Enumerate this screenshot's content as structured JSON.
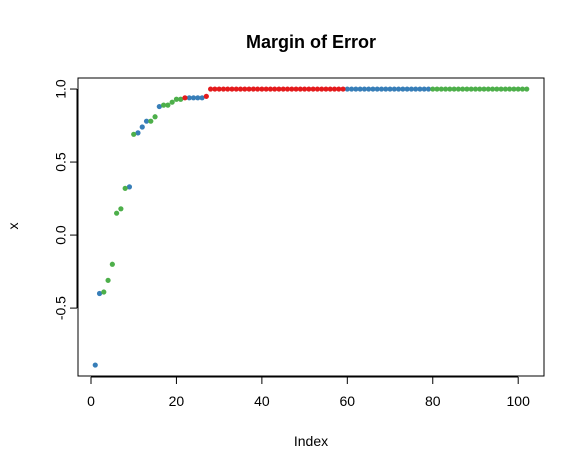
{
  "chart_data": {
    "type": "scatter",
    "title": "Margin of Error",
    "x_label": "Index",
    "y_label": "x",
    "xlim": [
      -3.04,
      106.04
    ],
    "ylim": [
      -0.965,
      1.0756
    ],
    "xticks": [
      0,
      20,
      40,
      60,
      80,
      100
    ],
    "yticks": [
      -0.5,
      {
        "value": 0,
        "label": "0.0"
      },
      0.5,
      {
        "value": 1,
        "label": "1.0"
      }
    ],
    "series": [
      {
        "color": "#377EB8",
        "x": [
          1,
          2,
          9,
          11,
          12,
          13,
          16,
          23,
          24,
          25,
          26,
          60,
          61,
          62,
          63,
          64,
          65,
          66,
          67,
          68,
          69,
          70,
          71,
          72,
          73,
          74,
          75,
          76,
          77,
          78,
          79
        ],
        "values": [
          -0.89,
          -0.4,
          0.33,
          0.7,
          0.74,
          0.78,
          0.88,
          0.94,
          0.94,
          0.94,
          0.94,
          1,
          1,
          1,
          1,
          1,
          1,
          1,
          1,
          1,
          1,
          1,
          1,
          1,
          1,
          1,
          1,
          1,
          1,
          1,
          1
        ]
      },
      {
        "color": "#4DAF4A",
        "x": [
          3,
          4,
          5,
          6,
          7,
          8,
          10,
          14,
          15,
          17,
          18,
          19,
          20,
          21,
          80,
          81,
          82,
          83,
          84,
          85,
          86,
          87,
          88,
          89,
          90,
          91,
          92,
          93,
          94,
          95,
          96,
          97,
          98,
          99,
          100,
          101,
          102
        ],
        "values": [
          -0.39,
          -0.31,
          -0.2,
          0.15,
          0.18,
          0.32,
          0.69,
          0.78,
          0.81,
          0.89,
          0.89,
          0.91,
          0.93,
          0.93,
          1,
          1,
          1,
          1,
          1,
          1,
          1,
          1,
          1,
          1,
          1,
          1,
          1,
          1,
          1,
          1,
          1,
          1,
          1,
          1,
          1,
          1,
          1
        ]
      },
      {
        "color": "#E41A1C",
        "x": [
          22,
          27,
          28,
          29,
          30,
          31,
          32,
          33,
          34,
          35,
          36,
          37,
          38,
          39,
          40,
          41,
          42,
          43,
          44,
          45,
          46,
          47,
          48,
          49,
          50,
          51,
          52,
          53,
          54,
          55,
          56,
          57,
          58,
          59
        ],
        "values": [
          0.94,
          0.95,
          1,
          1,
          1,
          1,
          1,
          1,
          1,
          1,
          1,
          1,
          1,
          1,
          1,
          1,
          1,
          1,
          1,
          1,
          1,
          1,
          1,
          1,
          1,
          1,
          1,
          1,
          1,
          1,
          1,
          1,
          1,
          1
        ]
      }
    ]
  }
}
